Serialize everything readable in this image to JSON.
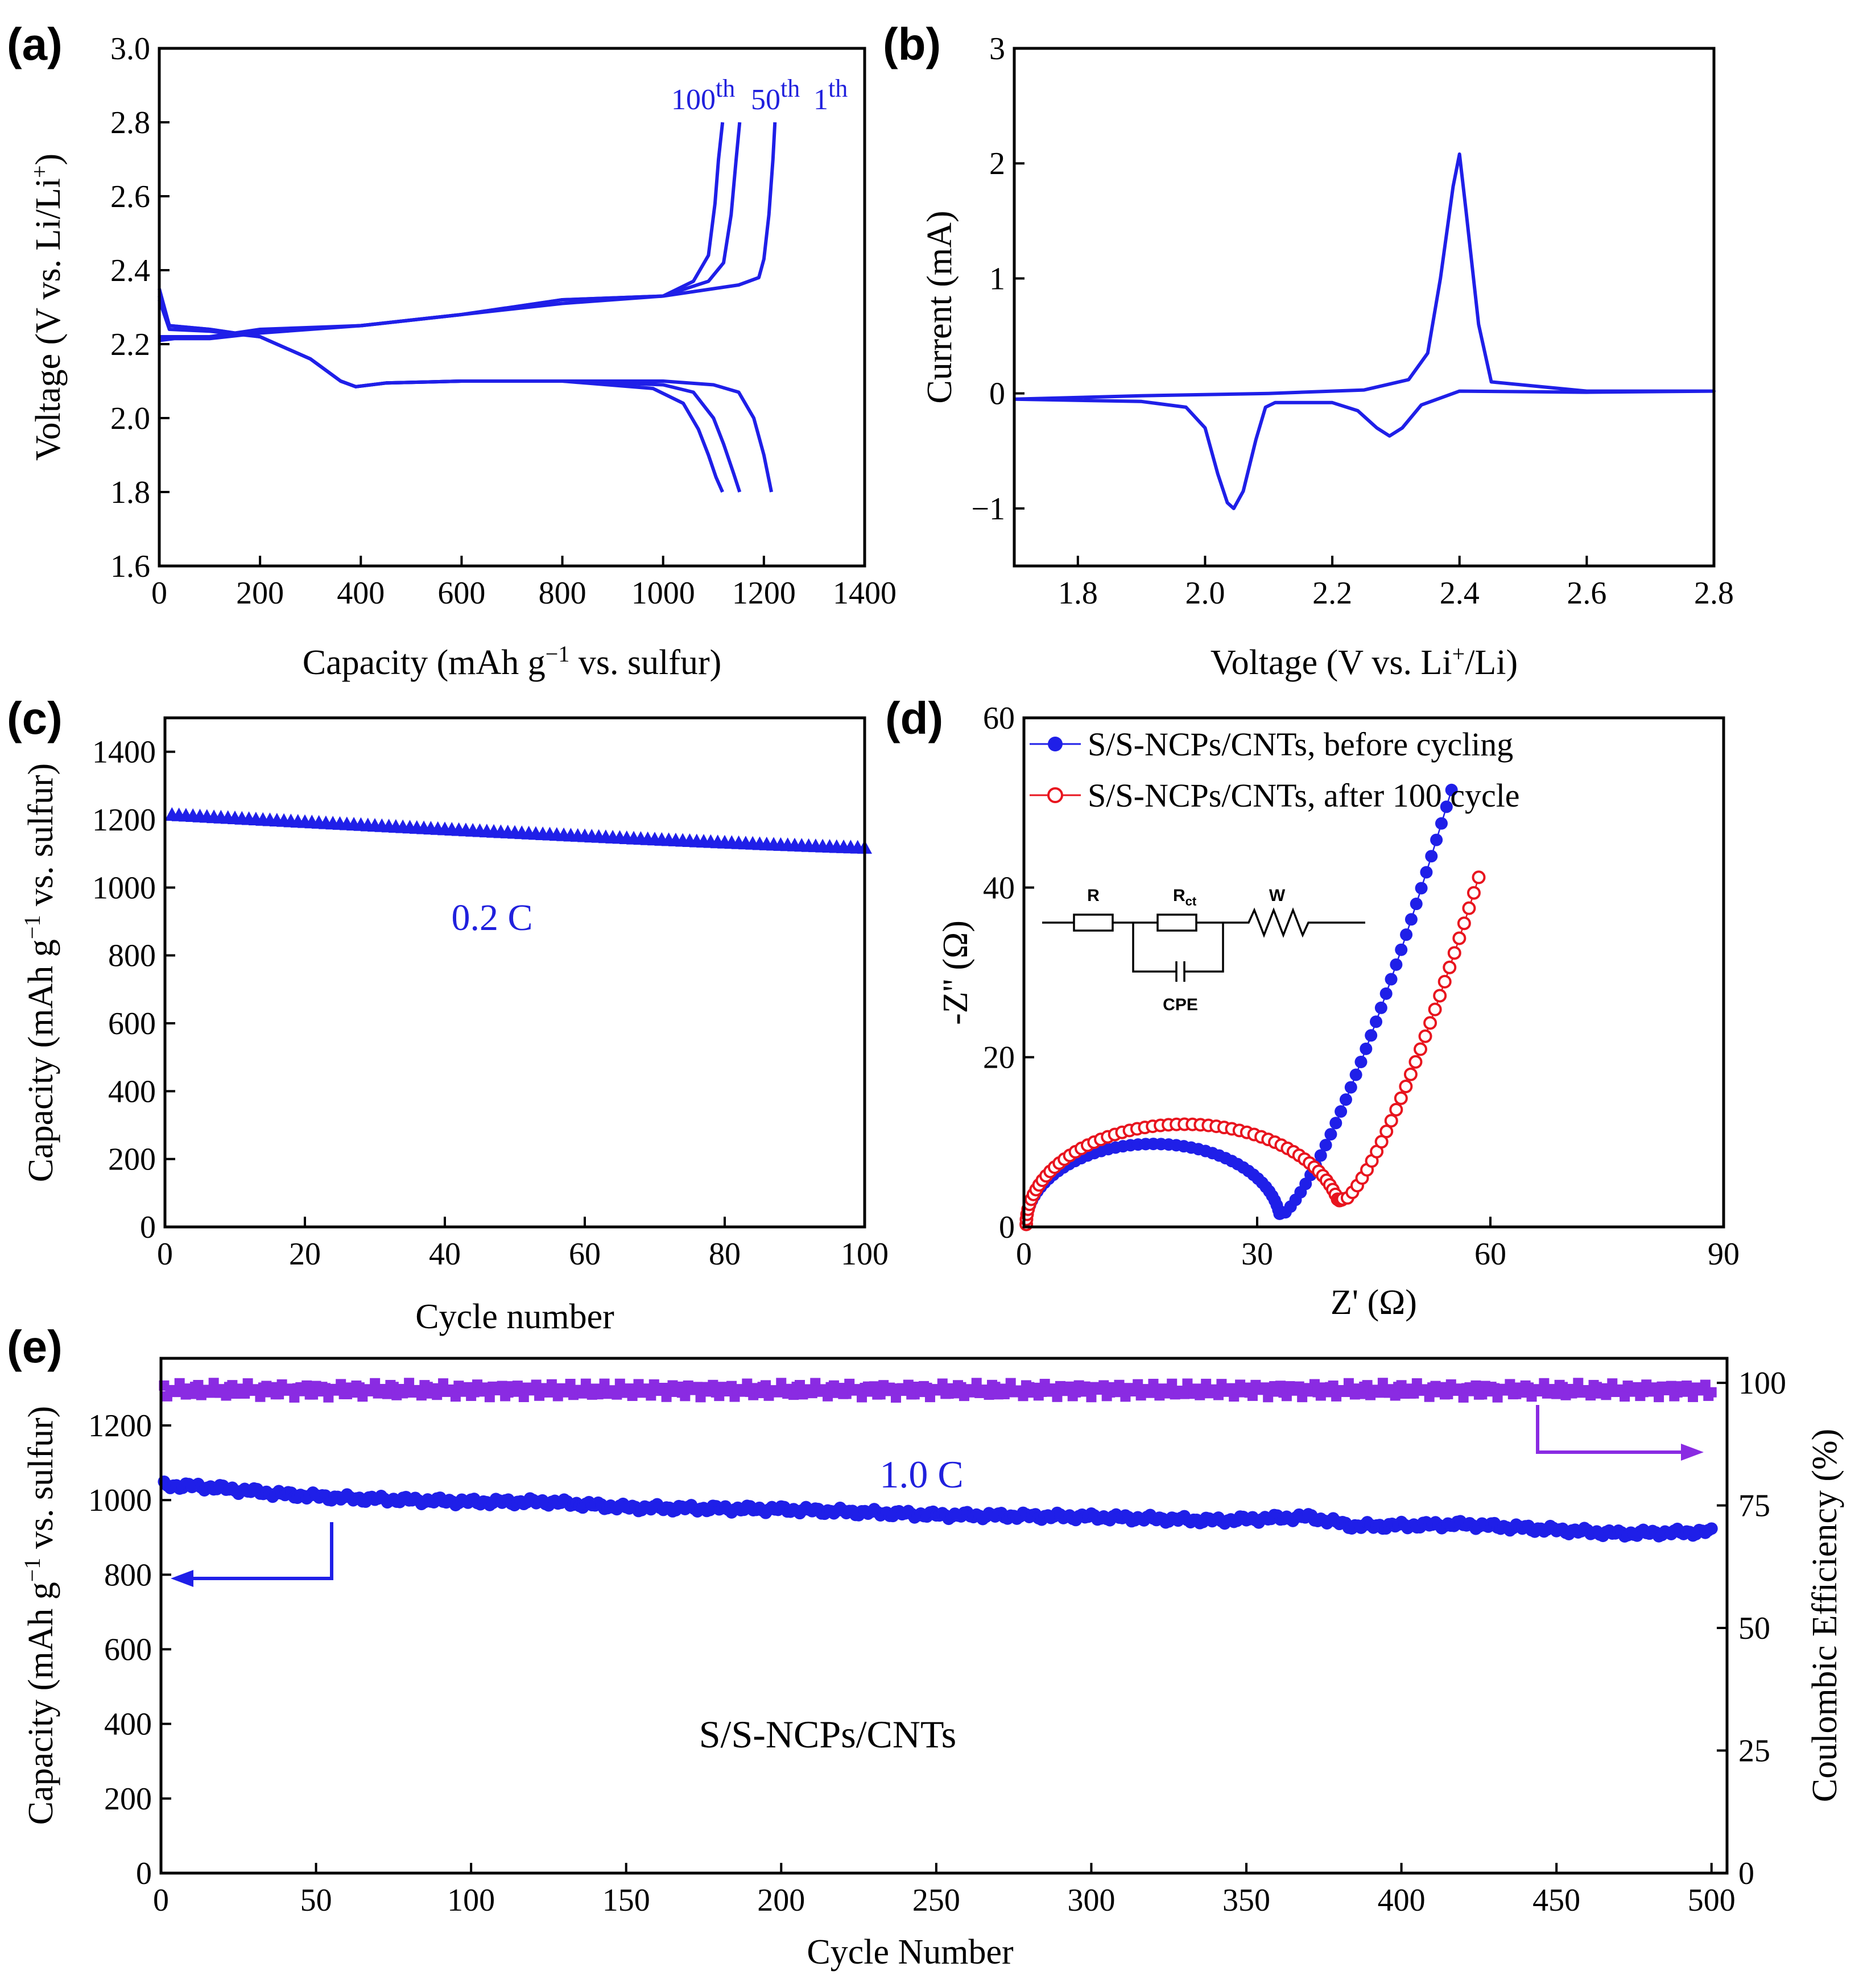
{
  "colors": {
    "blue": "#1f1fe8",
    "red": "#e8141e",
    "purple": "#8a2be2",
    "axis": "#000000"
  },
  "chart_data": [
    {
      "panel": "(a)",
      "type": "line",
      "xlabel": "Capacity (mAh g",
      "xlabel_sup": "−1",
      "xlabel_tail": " vs. sulfur)",
      "ylabel": "Voltage (V vs. Li/Li",
      "ylabel_sup": "+",
      "ylabel_tail": ")",
      "xlim": [
        0,
        1400
      ],
      "ylim": [
        1.6,
        3.0
      ],
      "xticks": [
        0,
        200,
        400,
        600,
        800,
        1000,
        1200,
        1400
      ],
      "yticks": [
        1.6,
        1.8,
        2.0,
        2.2,
        2.4,
        2.6,
        2.8,
        3.0
      ],
      "cycle_labels": [
        {
          "num": "100",
          "sup": "th"
        },
        {
          "num": "50",
          "sup": "th"
        },
        {
          "num": "1",
          "sup": "th"
        }
      ],
      "series": [
        {
          "name": "1th discharge",
          "x": [
            0,
            20,
            100,
            200,
            300,
            360,
            390,
            450,
            600,
            800,
            1000,
            1100,
            1150,
            1180,
            1200,
            1215
          ],
          "y": [
            2.35,
            2.25,
            2.24,
            2.22,
            2.16,
            2.1,
            2.085,
            2.095,
            2.1,
            2.1,
            2.1,
            2.09,
            2.07,
            2.0,
            1.9,
            1.8
          ]
        },
        {
          "name": "50th discharge",
          "x": [
            0,
            20,
            100,
            200,
            300,
            360,
            390,
            450,
            600,
            800,
            1000,
            1060,
            1100,
            1120,
            1140,
            1152
          ],
          "y": [
            2.33,
            2.25,
            2.24,
            2.22,
            2.16,
            2.1,
            2.085,
            2.095,
            2.1,
            2.1,
            2.09,
            2.07,
            2.0,
            1.93,
            1.85,
            1.8
          ]
        },
        {
          "name": "100th discharge",
          "x": [
            0,
            20,
            100,
            200,
            300,
            360,
            390,
            450,
            600,
            800,
            980,
            1040,
            1070,
            1090,
            1105,
            1118
          ],
          "y": [
            2.32,
            2.24,
            2.235,
            2.22,
            2.16,
            2.1,
            2.085,
            2.095,
            2.1,
            2.1,
            2.08,
            2.04,
            1.97,
            1.9,
            1.84,
            1.8
          ]
        },
        {
          "name": "1th charge",
          "x": [
            0,
            30,
            100,
            200,
            400,
            600,
            800,
            1000,
            1150,
            1190,
            1200,
            1210,
            1218,
            1222
          ],
          "y": [
            2.21,
            2.215,
            2.215,
            2.23,
            2.25,
            2.28,
            2.32,
            2.33,
            2.36,
            2.38,
            2.43,
            2.55,
            2.7,
            2.8
          ]
        },
        {
          "name": "50th charge",
          "x": [
            0,
            30,
            100,
            200,
            400,
            600,
            800,
            1000,
            1090,
            1120,
            1135,
            1145,
            1152
          ],
          "y": [
            2.22,
            2.22,
            2.22,
            2.235,
            2.25,
            2.28,
            2.32,
            2.33,
            2.37,
            2.42,
            2.55,
            2.7,
            2.8
          ]
        },
        {
          "name": "100th charge",
          "x": [
            0,
            30,
            100,
            200,
            400,
            600,
            800,
            1000,
            1060,
            1090,
            1103,
            1110,
            1118
          ],
          "y": [
            2.22,
            2.22,
            2.22,
            2.24,
            2.25,
            2.28,
            2.31,
            2.33,
            2.37,
            2.44,
            2.58,
            2.7,
            2.8
          ]
        }
      ]
    },
    {
      "panel": "(b)",
      "type": "line",
      "xlabel": "Voltage  (V vs. Li",
      "xlabel_sup": "+",
      "xlabel_tail": "/Li)",
      "ylabel": "Current (mA)",
      "xlim": [
        1.7,
        2.8
      ],
      "ylim": [
        -1.5,
        3.0
      ],
      "xticks": [
        1.8,
        2.0,
        2.2,
        2.4,
        2.6,
        2.8
      ],
      "yticks": [
        -1,
        0,
        1,
        2,
        3
      ],
      "ytick_labels": [
        "−1",
        "0",
        "1",
        "2",
        "3"
      ],
      "series": [
        {
          "name": "CV",
          "x": [
            1.7,
            1.9,
            1.97,
            2.0,
            2.02,
            2.035,
            2.045,
            2.06,
            2.08,
            2.095,
            2.11,
            2.2,
            2.24,
            2.27,
            2.29,
            2.31,
            2.34,
            2.4,
            2.6,
            2.8,
            2.6,
            2.45,
            2.43,
            2.41,
            2.4,
            2.39,
            2.37,
            2.35,
            2.32,
            2.25,
            2.1,
            1.9,
            1.7
          ],
          "y": [
            -0.05,
            -0.07,
            -0.12,
            -0.3,
            -0.7,
            -0.95,
            -1.0,
            -0.85,
            -0.4,
            -0.12,
            -0.08,
            -0.08,
            -0.15,
            -0.3,
            -0.37,
            -0.3,
            -0.1,
            0.02,
            0.01,
            0.02,
            0.02,
            0.1,
            0.6,
            1.6,
            2.08,
            1.8,
            1.0,
            0.35,
            0.12,
            0.03,
            0.0,
            -0.02,
            -0.05
          ]
        }
      ]
    },
    {
      "panel": "(c)",
      "type": "scatter",
      "xlabel": "Cycle number",
      "ylabel": "Capacity (mAh g",
      "ylabel_sup": "−1",
      "ylabel_tail": " vs. sulfur)",
      "xlim": [
        0,
        100
      ],
      "ylim": [
        0,
        1500
      ],
      "xticks": [
        0,
        20,
        40,
        60,
        80,
        100
      ],
      "yticks": [
        0,
        200,
        400,
        600,
        800,
        1000,
        1200,
        1400
      ],
      "annotation": "0.2 C",
      "series": [
        {
          "name": "S/S-NCPs/CNTs",
          "start": 1215,
          "end": 1118,
          "n": 100
        }
      ]
    },
    {
      "panel": "(d)",
      "type": "scatter",
      "xlabel": "Z' (Ω)",
      "ylabel": "-Z'' (Ω)",
      "xlim": [
        0,
        90
      ],
      "ylim": [
        0,
        60
      ],
      "xticks": [
        0,
        30,
        60,
        90
      ],
      "yticks": [
        0,
        20,
        40,
        60
      ],
      "legend": [
        "S/S-NCPs/CNTs, before cycling",
        "S/S-NCPs/CNTs, after 100 cycle"
      ],
      "circuit": {
        "r": "R",
        "rct": "R",
        "rct_sub": "ct",
        "w": "W",
        "cpe": "CPE"
      },
      "series": [
        {
          "name": "S/S-NCPs/CNTs, before cycling",
          "arc_start": 0.3,
          "arc_end": 33.0,
          "min_z": 1.3,
          "tail_end": [
            55.0,
            51.5
          ]
        },
        {
          "name": "S/S-NCPs/CNTs, after 100 cycle",
          "arc_start": 0.3,
          "arc_end": 41.0,
          "min_z": 3.0,
          "tail_end": [
            58.5,
            41.2
          ]
        }
      ]
    },
    {
      "panel": "(e)",
      "type": "scatter",
      "xlabel": "Cycle Number",
      "ylabel": "Capacity (mAh g",
      "ylabel_sup": "−1",
      "ylabel_tail": " vs. sulfur)",
      "y2label": "Coulombic Efficiency (%)",
      "xlim": [
        0,
        505
      ],
      "ylim": [
        0,
        1380
      ],
      "y2lim": [
        0,
        105
      ],
      "xticks": [
        0,
        50,
        100,
        150,
        200,
        250,
        300,
        350,
        400,
        450,
        500
      ],
      "yticks": [
        0,
        200,
        400,
        600,
        800,
        1000,
        1200
      ],
      "y2ticks": [
        0,
        25,
        50,
        75,
        100
      ],
      "annotation_rate": "1.0 C",
      "annotation_sample": "S/S-NCPs/CNTs",
      "series": [
        {
          "name": "Capacity",
          "points": [
            [
              1,
              1040
            ],
            [
              15,
              1035
            ],
            [
              40,
              1015
            ],
            [
              60,
              1005
            ],
            [
              100,
              995
            ],
            [
              125,
              995
            ],
            [
              150,
              980
            ],
            [
              200,
              975
            ],
            [
              250,
              960
            ],
            [
              300,
              955
            ],
            [
              340,
              945
            ],
            [
              370,
              955
            ],
            [
              385,
              930
            ],
            [
              420,
              935
            ],
            [
              450,
              920
            ],
            [
              470,
              910
            ],
            [
              500,
              915
            ]
          ]
        },
        {
          "name": "Coulombic Efficiency",
          "value": 98.5
        }
      ]
    }
  ]
}
